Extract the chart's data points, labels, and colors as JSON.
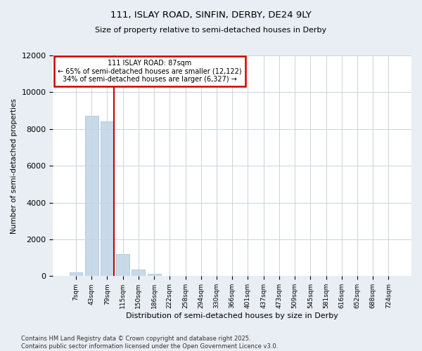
{
  "title_line1": "111, ISLAY ROAD, SINFIN, DERBY, DE24 9LY",
  "title_line2": "Size of property relative to semi-detached houses in Derby",
  "xlabel": "Distribution of semi-detached houses by size in Derby",
  "ylabel": "Number of semi-detached properties",
  "categories": [
    "7sqm",
    "43sqm",
    "79sqm",
    "115sqm",
    "150sqm",
    "186sqm",
    "222sqm",
    "258sqm",
    "294sqm",
    "330sqm",
    "366sqm",
    "401sqm",
    "437sqm",
    "473sqm",
    "509sqm",
    "545sqm",
    "581sqm",
    "616sqm",
    "652sqm",
    "688sqm",
    "724sqm"
  ],
  "values": [
    200,
    8700,
    8400,
    1200,
    350,
    120,
    0,
    0,
    0,
    0,
    0,
    0,
    0,
    0,
    0,
    0,
    0,
    0,
    0,
    0,
    0
  ],
  "bar_color": "#c8daea",
  "bar_edge_color": "#a0bcd4",
  "vline_index": 2,
  "vline_color": "#cc0000",
  "annotation_title": "111 ISLAY ROAD: 87sqm",
  "annotation_line2": "← 65% of semi-detached houses are smaller (12,122)",
  "annotation_line3": "34% of semi-detached houses are larger (6,327) →",
  "annotation_box_color": "#cc0000",
  "ylim": [
    0,
    12000
  ],
  "yticks": [
    0,
    2000,
    4000,
    6000,
    8000,
    10000,
    12000
  ],
  "footer_line1": "Contains HM Land Registry data © Crown copyright and database right 2025.",
  "footer_line2": "Contains public sector information licensed under the Open Government Licence v3.0.",
  "bg_color": "#e8eef4",
  "plot_bg_color": "#ffffff",
  "grid_color": "#c8d4de"
}
